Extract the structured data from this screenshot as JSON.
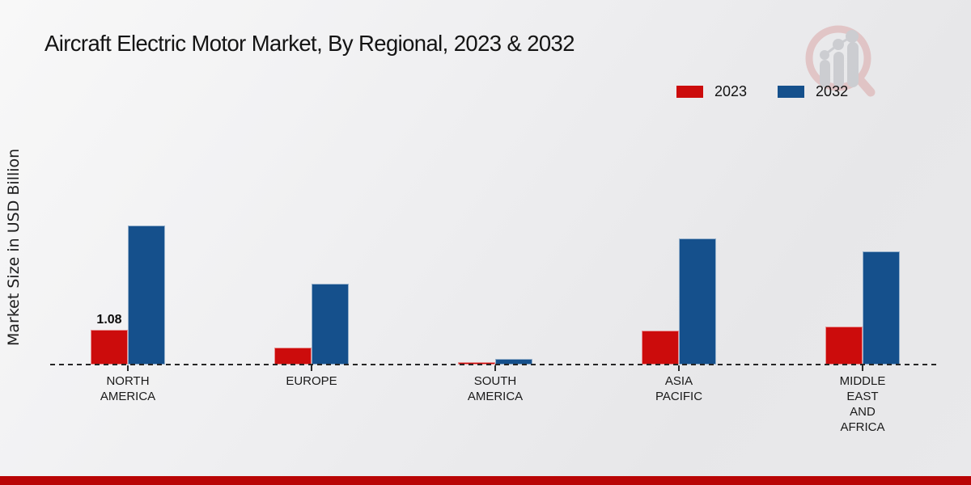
{
  "chart_data": {
    "type": "bar",
    "title": "Aircraft Electric Motor Market, By Regional, 2023 & 2032",
    "ylabel": "Market Size in USD Billion",
    "categories": [
      "NORTH AMERICA",
      "EUROPE",
      "SOUTH AMERICA",
      "ASIA PACIFIC",
      "MIDDLE EAST AND AFRICA"
    ],
    "category_lines": [
      [
        "NORTH",
        "AMERICA"
      ],
      [
        "EUROPE"
      ],
      [
        "SOUTH",
        "AMERICA"
      ],
      [
        "ASIA",
        "PACIFIC"
      ],
      [
        "MIDDLE",
        "EAST",
        "AND",
        "AFRICA"
      ]
    ],
    "series": [
      {
        "name": "2023",
        "color": "#cc0c0c",
        "values": [
          1.08,
          0.53,
          0.08,
          1.06,
          1.18
        ]
      },
      {
        "name": "2032",
        "color": "#15508c",
        "values": [
          4.33,
          2.52,
          0.18,
          3.92,
          3.53
        ]
      }
    ],
    "data_labels": [
      {
        "series": 0,
        "category": 0,
        "text": "1.08"
      }
    ],
    "ylim": [
      0,
      4.8
    ],
    "grid": false,
    "legend_position": "top-right",
    "baseline_style": "dashed-black",
    "axis_ticks": "category-center"
  },
  "branding": {
    "bottom_bar_color": "#b90505",
    "watermark_icon": "magnifier-bar-chart-logo",
    "watermark_ring_color": "#d89a9a",
    "watermark_bar_color": "#a9adb3"
  }
}
